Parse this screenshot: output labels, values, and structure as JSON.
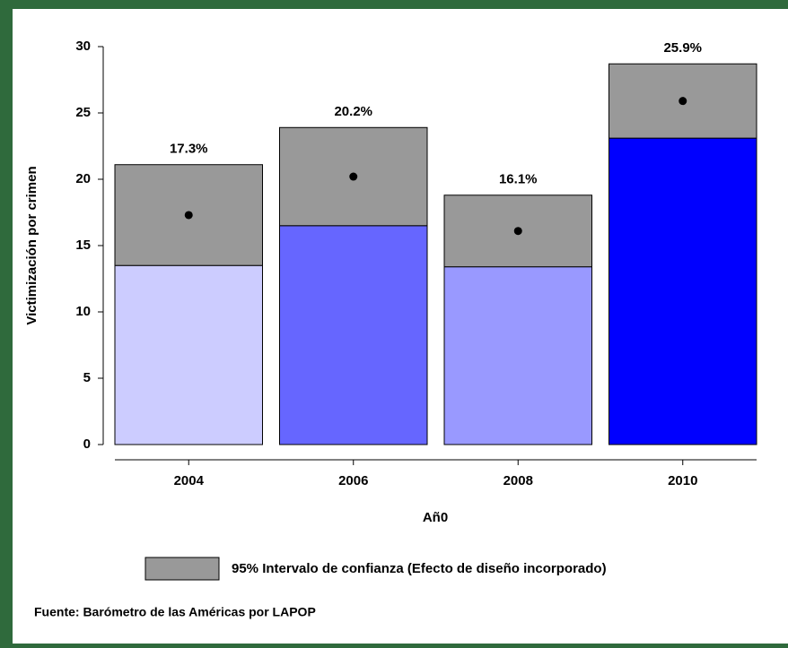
{
  "chart_data": {
    "type": "bar",
    "categories": [
      "2004",
      "2006",
      "2008",
      "2010"
    ],
    "values": [
      17.3,
      20.2,
      16.1,
      25.9
    ],
    "value_labels": [
      "17.3%",
      "20.2%",
      "16.1%",
      "25.9%"
    ],
    "ci_lower": [
      13.5,
      16.5,
      13.4,
      23.1
    ],
    "ci_upper": [
      21.1,
      23.9,
      18.8,
      28.7
    ],
    "colors": [
      "#ccccff",
      "#6666ff",
      "#9999ff",
      "#0000ff"
    ],
    "ci_color": "#999999",
    "ci_legend": "95% Intervalo de confianza (Efecto de diseño incorporado)",
    "xlabel": "Añ0",
    "ylabel": "Victimización por crimen",
    "source": "Fuente: Barómetro de las Américas por LAPOP",
    "ylim": [
      0,
      30
    ],
    "yticks": [
      0,
      5,
      10,
      15,
      20,
      25,
      30
    ]
  }
}
